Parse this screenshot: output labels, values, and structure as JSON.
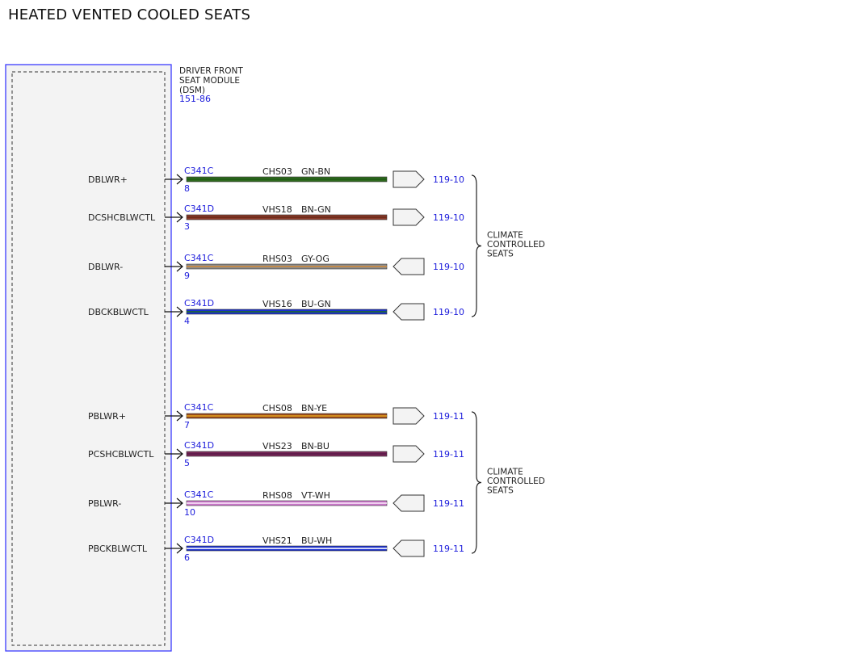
{
  "title": "HEATED VENTED COOLED SEATS",
  "module": {
    "name_lines": [
      "DRIVER FRONT",
      "SEAT MODULE",
      "(DSM)"
    ],
    "ref": "151-86"
  },
  "colors": {
    "ref_blue": "#1a1adb",
    "module_border": "#3b3bff",
    "module_fill": "#f3f3f3"
  },
  "circuits": [
    {
      "pin_name": "DBLWR+",
      "connector": "C341C",
      "pin": "8",
      "circuit": "CHS03",
      "wire_color": "GN-BN",
      "colors": [
        "#2f6a1f",
        "#1f5a14"
      ],
      "direction": "out",
      "ref": "119-10"
    },
    {
      "pin_name": "DCSHCBLWCTL",
      "connector": "C341D",
      "pin": "3",
      "circuit": "VHS18",
      "wire_color": "BN-GN",
      "colors": [
        "#8a3a2a",
        "#6a2a1a"
      ],
      "direction": "out",
      "ref": "119-10"
    },
    {
      "pin_name": "DBLWR-",
      "connector": "C341C",
      "pin": "9",
      "circuit": "RHS03",
      "wire_color": "GY-OG",
      "colors": [
        "#8e8e8e",
        "#d08a3a"
      ],
      "direction": "in",
      "ref": "119-10"
    },
    {
      "pin_name": "DBCKBLWCTL",
      "connector": "C341D",
      "pin": "4",
      "circuit": "VHS16",
      "wire_color": "BU-GN",
      "colors": [
        "#1a2fd0",
        "#1f6a2a"
      ],
      "direction": "in",
      "ref": "119-10"
    },
    {
      "pin_name": "PBLWR+",
      "connector": "C341C",
      "pin": "7",
      "circuit": "CHS08",
      "wire_color": "BN-YE",
      "colors": [
        "#9a4a1a",
        "#e0a020"
      ],
      "direction": "out",
      "ref": "119-11"
    },
    {
      "pin_name": "PCSHCBLWCTL",
      "connector": "C341D",
      "pin": "5",
      "circuit": "VHS23",
      "wire_color": "BN-BU",
      "colors": [
        "#7a2a5a",
        "#5a1a4a"
      ],
      "direction": "out",
      "ref": "119-11"
    },
    {
      "pin_name": "PBLWR-",
      "connector": "C341C",
      "pin": "10",
      "circuit": "RHS08",
      "wire_color": "VT-WH",
      "colors": [
        "#cc77cc",
        "#f6e6f6"
      ],
      "direction": "in",
      "ref": "119-11"
    },
    {
      "pin_name": "PBCKBLWCTL",
      "connector": "C341D",
      "pin": "6",
      "circuit": "VHS21",
      "wire_color": "BU-WH",
      "colors": [
        "#1a2fd0",
        "#ffffff"
      ],
      "direction": "in",
      "ref": "119-11"
    }
  ],
  "groups": [
    {
      "label_lines": [
        "CLIMATE",
        "CONTROLLED",
        "SEATS"
      ]
    },
    {
      "label_lines": [
        "CLIMATE",
        "CONTROLLED",
        "SEATS"
      ]
    }
  ]
}
